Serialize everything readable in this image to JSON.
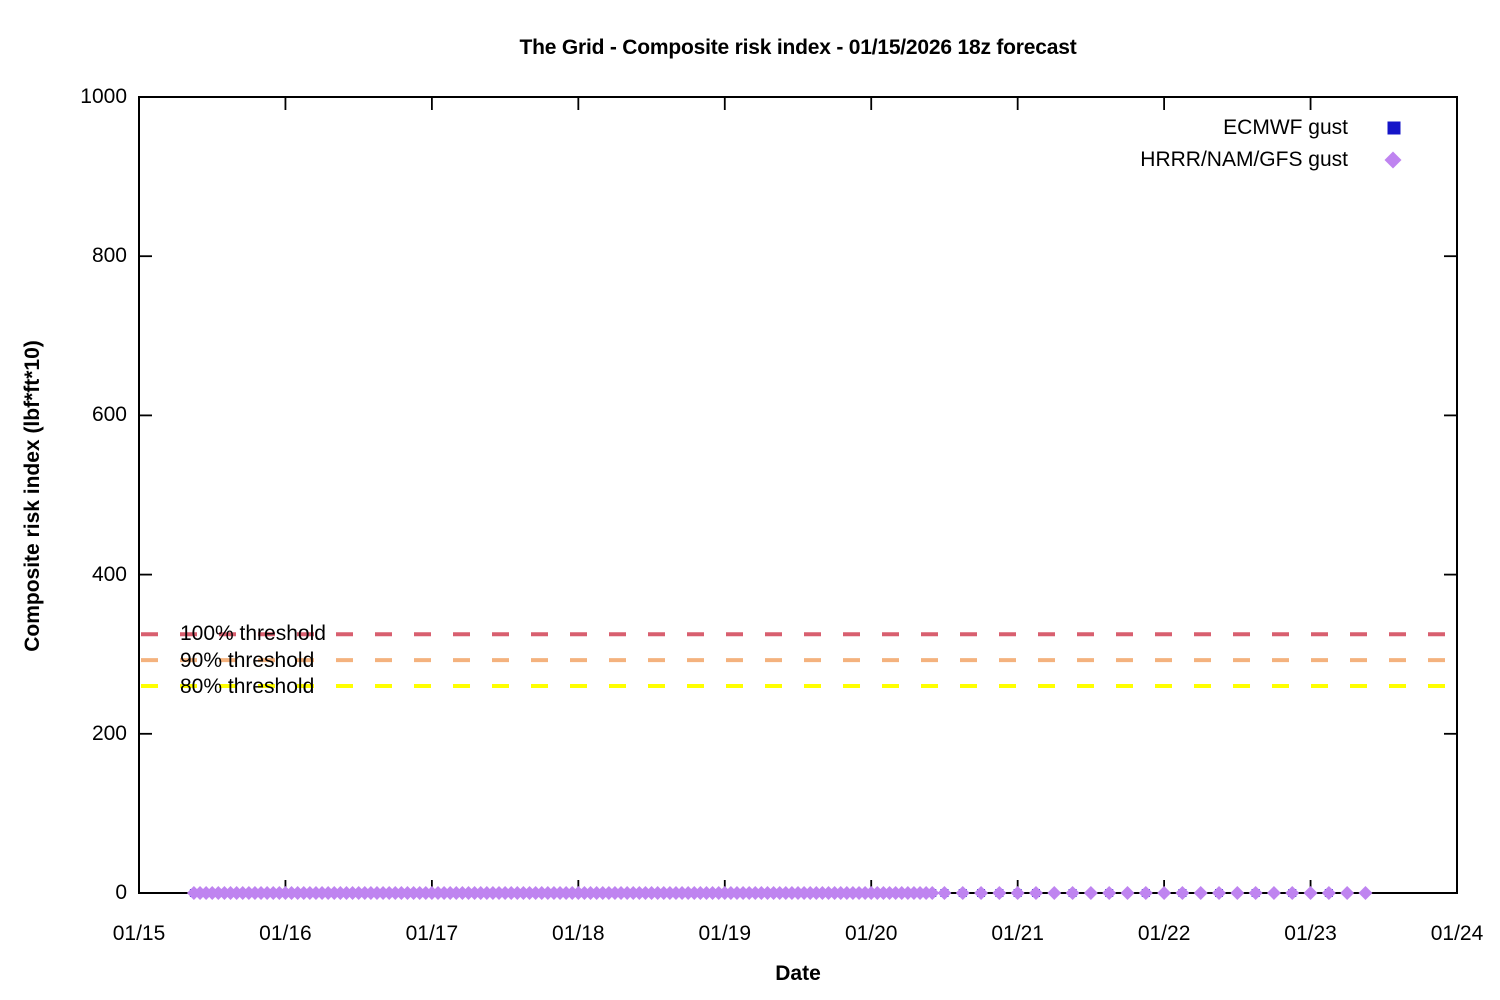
{
  "title": "The Grid - Composite risk index - 01/15/2026 18z forecast",
  "chart_data": {
    "type": "scatter",
    "title": "The Grid - Composite risk index - 01/15/2026 18z forecast",
    "xlabel": "Date",
    "ylabel": "Composite risk index (lbf*ft*10)",
    "x_axis": {
      "tick_labels": [
        "01/15",
        "01/16",
        "01/17",
        "01/18",
        "01/19",
        "01/20",
        "01/21",
        "01/22",
        "01/23",
        "01/24"
      ],
      "range_days": [
        0,
        9
      ],
      "start_date": "01/15",
      "end_date": "01/24"
    },
    "y_axis": {
      "tick_labels": [
        "0",
        "200",
        "400",
        "600",
        "800",
        "1000"
      ],
      "ticks": [
        0,
        200,
        400,
        600,
        800,
        1000
      ],
      "range": [
        0,
        1000
      ]
    },
    "grid": false,
    "legend_position": "top-right-inside",
    "series": [
      {
        "name": "ECMWF gust",
        "marker": "square",
        "color": "#1414c8",
        "value": 0,
        "sample_segments_days": [
          {
            "start": 0.375,
            "end": 5.4167,
            "interval_hours": 1
          },
          {
            "start": 5.5,
            "end": 6.125,
            "interval_hours": 3
          },
          {
            "start": 6.375,
            "end": 8.125,
            "interval_hours": 6
          }
        ]
      },
      {
        "name": "HRRR/NAM/GFS gust",
        "marker": "diamond",
        "color": "#bf84f0",
        "value": 0,
        "sample_segments_days": [
          {
            "start": 0.375,
            "end": 5.4167,
            "interval_hours": 1
          },
          {
            "start": 5.5,
            "end": 8.375,
            "interval_hours": 3
          }
        ]
      }
    ],
    "threshold_lines": [
      {
        "label": "100% threshold",
        "value": 325,
        "color": "#d85f6f",
        "style": "dashed"
      },
      {
        "label": "90% threshold",
        "value": 292.5,
        "color": "#f4b27e",
        "style": "dashed"
      },
      {
        "label": "80% threshold",
        "value": 260,
        "color": "#ffff00",
        "style": "dashed"
      }
    ]
  }
}
